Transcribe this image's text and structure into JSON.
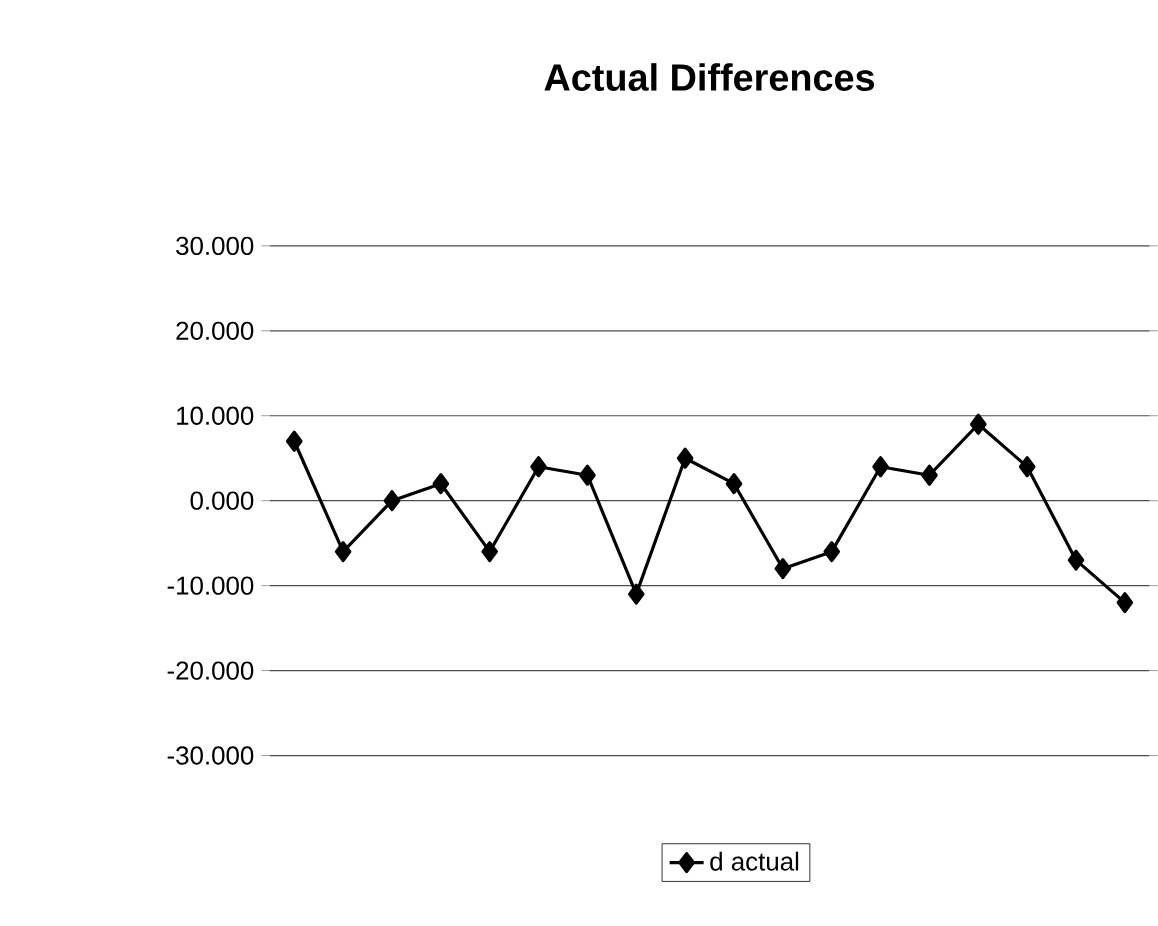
{
  "chart_data": {
    "type": "line",
    "title": "Actual Differences",
    "categories": [
      null,
      null,
      null,
      null,
      null,
      null,
      null,
      null,
      null,
      null,
      null,
      null,
      null,
      null,
      null,
      null,
      null,
      null
    ],
    "series": [
      {
        "name": "d actual",
        "color": "#000000",
        "values": [
          7,
          -6,
          0,
          2,
          -6,
          4,
          3,
          -11,
          5,
          2,
          -8,
          -6,
          4,
          3,
          9,
          4,
          -7,
          -12
        ]
      }
    ],
    "ylim": [
      -30,
      30
    ],
    "yticks": [
      {
        "value": -30,
        "label": "-30.000"
      },
      {
        "value": -20,
        "label": "-20.000"
      },
      {
        "value": -10,
        "label": "-10.000"
      },
      {
        "value": 0,
        "label": "0.000"
      },
      {
        "value": 10,
        "label": "10.000"
      },
      {
        "value": 20,
        "label": "20.000"
      },
      {
        "value": 30,
        "label": "30.000"
      }
    ],
    "grid": "y",
    "legend": "bottom",
    "marker": "diamond",
    "line_style": "solid",
    "tick_labels": "y"
  }
}
